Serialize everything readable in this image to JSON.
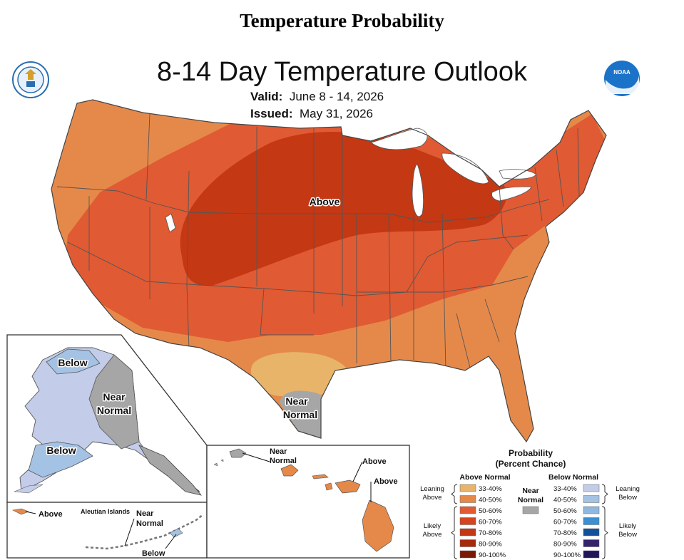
{
  "page_heading": "Temperature Probability",
  "map": {
    "title": "8-14 Day Temperature Outlook",
    "valid_label": "Valid:",
    "valid_value": "June 8 - 14, 2026",
    "issued_label": "Issued:",
    "issued_value": "May 31, 2026"
  },
  "logos": {
    "left": "doc-seal",
    "right": "noaa-logo",
    "noaa_text": "NOAA"
  },
  "region_labels": {
    "conus_above": "Above",
    "texas_near_normal": [
      "Near",
      "Normal"
    ],
    "alaska_below_north": "Below",
    "alaska_near_normal": [
      "Near",
      "Normal"
    ],
    "alaska_below_south": "Below",
    "aleutian_title": "Aleutian Islands",
    "aleutian_above": "Above",
    "aleutian_near_normal": [
      "Near",
      "Normal"
    ],
    "aleutian_below": "Below",
    "hawaii_near_normal": [
      "Near",
      "Normal"
    ],
    "hawaii_above_1": "Above",
    "hawaii_above_2": "Above"
  },
  "legend": {
    "title": "Probability",
    "subtitle": "(Percent Chance)",
    "above_header": "Above Normal",
    "below_header": "Below Normal",
    "near_label": [
      "Near",
      "Normal"
    ],
    "near_color": "#a6a6a6",
    "above_groups": {
      "leaning": [
        "Leaning",
        "Above"
      ],
      "likely": [
        "Likely",
        "Above"
      ]
    },
    "below_groups": {
      "leaning": [
        "Leaning",
        "Below"
      ],
      "likely": [
        "Likely",
        "Below"
      ]
    },
    "above_items": [
      {
        "label": "33-40%",
        "color": "#e8b46a"
      },
      {
        "label": "40-50%",
        "color": "#e5894a"
      },
      {
        "label": "50-60%",
        "color": "#e05a33"
      },
      {
        "label": "60-70%",
        "color": "#d5451f"
      },
      {
        "label": "70-80%",
        "color": "#c43814"
      },
      {
        "label": "80-90%",
        "color": "#a52a0c"
      },
      {
        "label": "90-100%",
        "color": "#7a1a06"
      }
    ],
    "below_items": [
      {
        "label": "33-40%",
        "color": "#c3cde9"
      },
      {
        "label": "40-50%",
        "color": "#a4c2e3"
      },
      {
        "label": "50-60%",
        "color": "#8fb8e0"
      },
      {
        "label": "60-70%",
        "color": "#3c8fd0"
      },
      {
        "label": "70-80%",
        "color": "#13509a"
      },
      {
        "label": "80-90%",
        "color": "#35226b"
      },
      {
        "label": "90-100%",
        "color": "#22155a"
      }
    ]
  }
}
